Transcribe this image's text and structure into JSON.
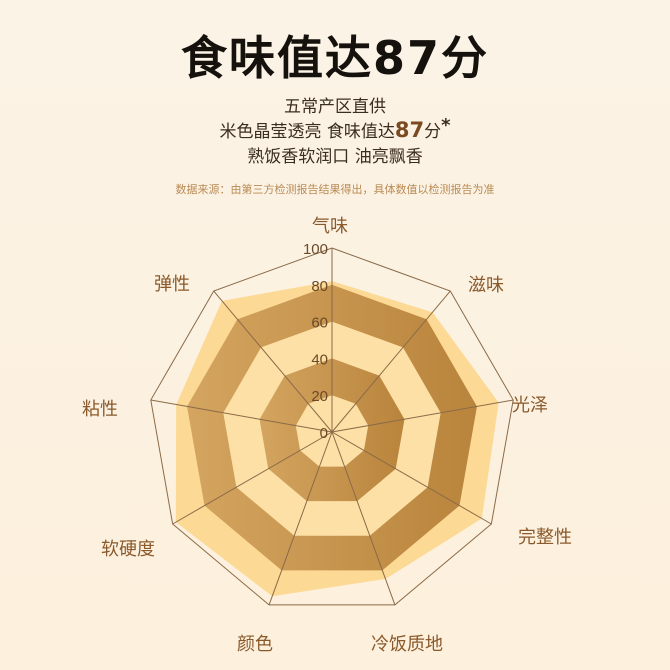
{
  "header": {
    "title": "食味值达87分",
    "line1": "五常产区直供",
    "line2_prefix": "米色晶莹透亮 食味值达",
    "line2_score": "87",
    "line2_suffix": "分",
    "line2_mark": "*",
    "line3": "熟饭香软润口 油亮飘香",
    "note": "数据来源：由第三方检测报告结果得出，具体数值以检测报告为准"
  },
  "colors": {
    "fill_light": "#fcd995",
    "band_dark": "#c8944a",
    "band_light": "#fde0a6",
    "grid_line": "#8a6a48"
  },
  "chart_data": {
    "type": "radar",
    "categories": [
      "气味",
      "滋味",
      "光泽",
      "完整性",
      "冷饭质地",
      "颜色",
      "软硬度",
      "粘性",
      "弹性"
    ],
    "values": [
      82,
      85,
      92,
      94,
      85,
      95,
      98,
      86,
      93
    ],
    "rlim": [
      0,
      100
    ],
    "ticks": [
      "0",
      "20",
      "40",
      "60",
      "80",
      "100"
    ],
    "grid": true
  }
}
